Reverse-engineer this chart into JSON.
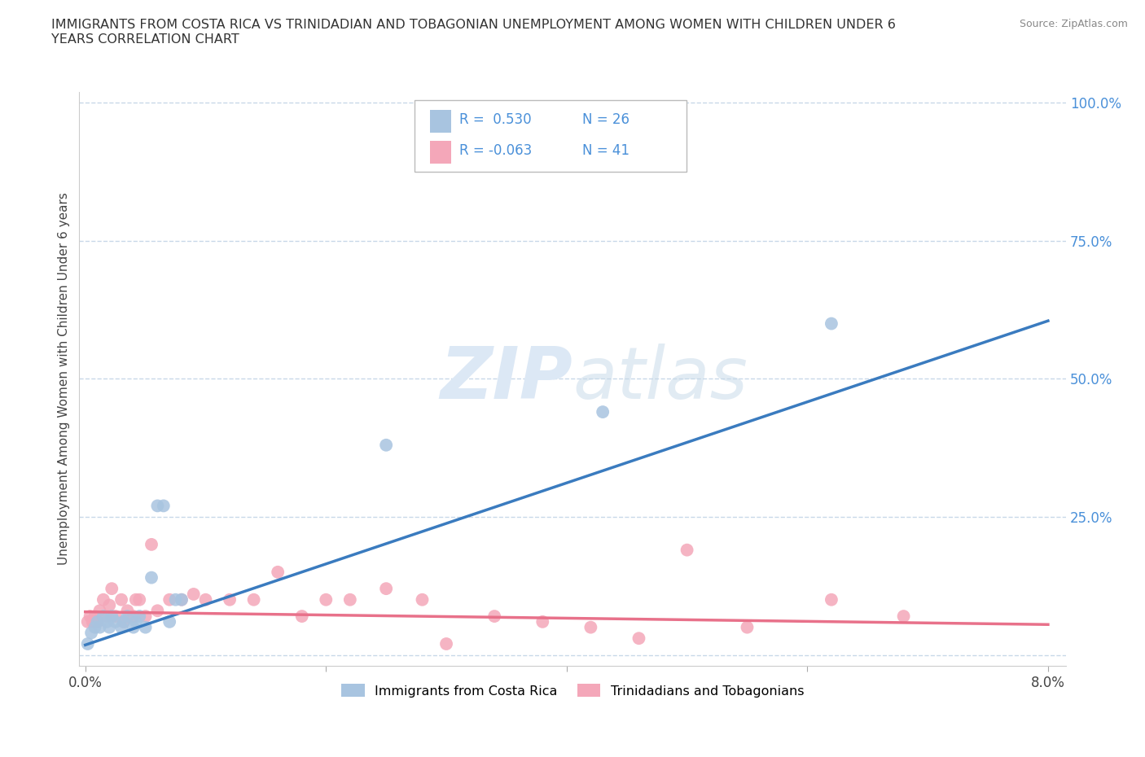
{
  "title_line1": "IMMIGRANTS FROM COSTA RICA VS TRINIDADIAN AND TOBAGONIAN UNEMPLOYMENT AMONG WOMEN WITH CHILDREN UNDER 6",
  "title_line2": "YEARS CORRELATION CHART",
  "source": "Source: ZipAtlas.com",
  "ylabel": "Unemployment Among Women with Children Under 6 years",
  "xlim": [
    0.0,
    0.08
  ],
  "ylim": [
    0.0,
    1.0
  ],
  "r_costa_rica": 0.53,
  "n_costa_rica": 26,
  "r_trinidad": -0.063,
  "n_trinidad": 41,
  "costa_rica_color": "#a8c4e0",
  "trinidad_color": "#f4a7b9",
  "line_costa_rica_color": "#3a7bbf",
  "line_trinidad_color": "#e8718a",
  "text_blue_color": "#4a90d9",
  "background_color": "#ffffff",
  "grid_color": "#c8d8e8",
  "watermark_color": "#dce8f5",
  "cr_x": [
    0.0002,
    0.0005,
    0.0008,
    0.001,
    0.0012,
    0.0015,
    0.0018,
    0.002,
    0.0022,
    0.0025,
    0.003,
    0.0032,
    0.0035,
    0.004,
    0.0042,
    0.0045,
    0.005,
    0.0055,
    0.006,
    0.0065,
    0.007,
    0.0075,
    0.008,
    0.025,
    0.043,
    0.062
  ],
  "cr_y": [
    0.02,
    0.04,
    0.05,
    0.06,
    0.05,
    0.07,
    0.06,
    0.05,
    0.07,
    0.06,
    0.05,
    0.06,
    0.07,
    0.05,
    0.06,
    0.07,
    0.05,
    0.14,
    0.27,
    0.27,
    0.06,
    0.1,
    0.1,
    0.38,
    0.44,
    0.6
  ],
  "tt_x": [
    0.0002,
    0.0004,
    0.0006,
    0.0008,
    0.001,
    0.0012,
    0.0015,
    0.0018,
    0.002,
    0.0022,
    0.0025,
    0.003,
    0.0032,
    0.0035,
    0.004,
    0.0042,
    0.0045,
    0.005,
    0.0055,
    0.006,
    0.007,
    0.008,
    0.009,
    0.01,
    0.012,
    0.014,
    0.016,
    0.018,
    0.02,
    0.022,
    0.025,
    0.028,
    0.03,
    0.034,
    0.038,
    0.042,
    0.046,
    0.05,
    0.055,
    0.062,
    0.068
  ],
  "tt_y": [
    0.06,
    0.07,
    0.06,
    0.07,
    0.06,
    0.08,
    0.1,
    0.07,
    0.09,
    0.12,
    0.07,
    0.1,
    0.06,
    0.08,
    0.07,
    0.1,
    0.1,
    0.07,
    0.2,
    0.08,
    0.1,
    0.1,
    0.11,
    0.1,
    0.1,
    0.1,
    0.15,
    0.07,
    0.1,
    0.1,
    0.12,
    0.1,
    0.02,
    0.07,
    0.06,
    0.05,
    0.03,
    0.19,
    0.05,
    0.1,
    0.07
  ]
}
